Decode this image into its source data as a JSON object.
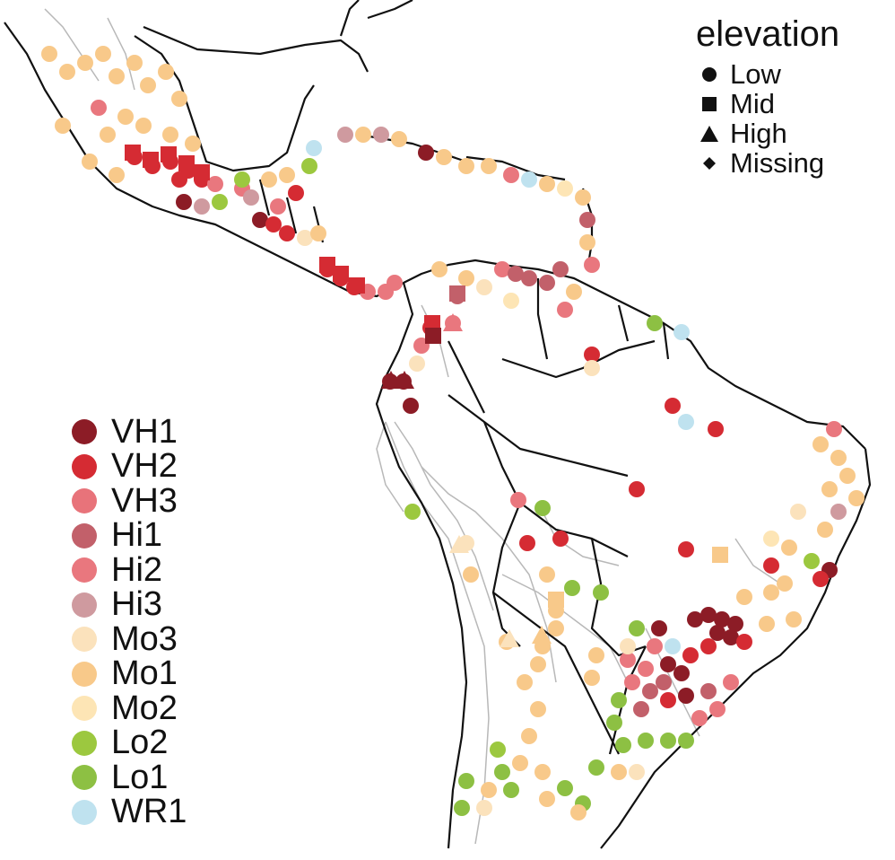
{
  "legend_elevation": {
    "title": "elevation",
    "items": [
      {
        "label": "Low",
        "shape": "circle"
      },
      {
        "label": "Mid",
        "shape": "square"
      },
      {
        "label": "High",
        "shape": "triangle"
      },
      {
        "label": "Missing",
        "shape": "diamond"
      }
    ]
  },
  "legend_cluster": [
    {
      "label": "VH1",
      "color": "#8c1c26"
    },
    {
      "label": "VH2",
      "color": "#d52b33"
    },
    {
      "label": "VH3",
      "color": "#e8737a"
    },
    {
      "label": "Hi1",
      "color": "#c2606a"
    },
    {
      "label": "Hi2",
      "color": "#e9777e"
    },
    {
      "label": "Hi3",
      "color": "#cf9a9f"
    },
    {
      "label": "Mo3",
      "color": "#fbe2bc"
    },
    {
      "label": "Mo1",
      "color": "#f8c98a"
    },
    {
      "label": "Mo2",
      "color": "#fde5b5"
    },
    {
      "label": "Lo2",
      "color": "#9cc83f"
    },
    {
      "label": "Lo1",
      "color": "#8dc043"
    },
    {
      "label": "WR1",
      "color": "#bfe2ef"
    }
  ],
  "colors": {
    "coastline": "#111111",
    "border": "#111111",
    "river": "#b8b8b8"
  }
}
